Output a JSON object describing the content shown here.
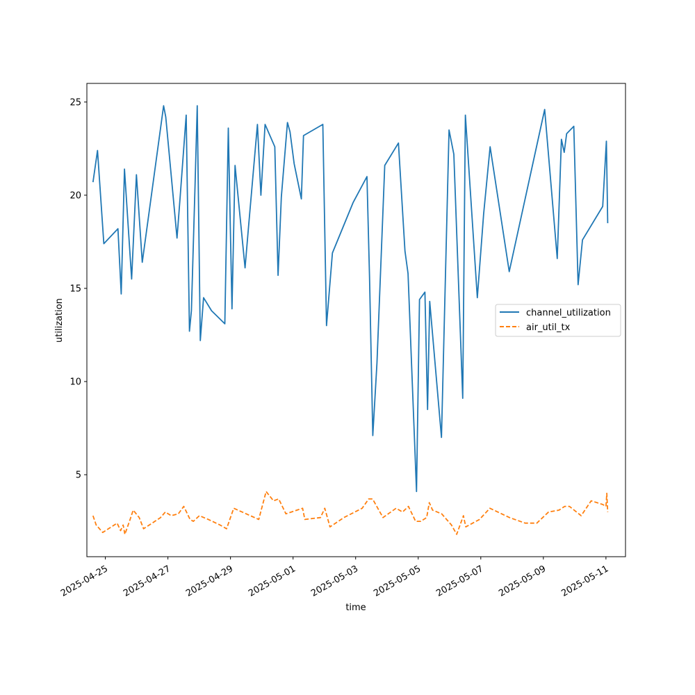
{
  "chart_data": {
    "type": "line",
    "title": "",
    "xlabel": "time",
    "ylabel": "utilization",
    "x_tick_labels": [
      "2025-04-25",
      "2025-04-27",
      "2025-04-29",
      "2025-05-01",
      "2025-05-03",
      "2025-05-05",
      "2025-05-07",
      "2025-05-09",
      "2025-05-11"
    ],
    "y_tick_labels": [
      "5",
      "10",
      "15",
      "20",
      "25"
    ],
    "xlim": [
      "2025-04-24T09:50",
      "2025-05-11T15:00"
    ],
    "ylim": [
      0.6,
      26.0
    ],
    "grid": false,
    "legend_position": "center-right",
    "series": [
      {
        "name": "channel_utilization",
        "color": "#1f77b4",
        "style": "solid",
        "points": [
          [
            "2025-04-24T14:30",
            20.7
          ],
          [
            "2025-04-24T18:00",
            22.4
          ],
          [
            "2025-04-24T22:50",
            17.4
          ],
          [
            "2025-04-25T09:40",
            18.2
          ],
          [
            "2025-04-25T12:10",
            14.7
          ],
          [
            "2025-04-25T14:40",
            21.4
          ],
          [
            "2025-04-25T20:10",
            15.5
          ],
          [
            "2025-04-25T23:50",
            21.1
          ],
          [
            "2025-04-26T04:20",
            16.4
          ],
          [
            "2025-04-26T20:40",
            24.8
          ],
          [
            "2025-04-26T22:20",
            24.2
          ],
          [
            "2025-04-27T02:20",
            21.2
          ],
          [
            "2025-04-27T07:00",
            17.7
          ],
          [
            "2025-04-27T09:30",
            20.0
          ],
          [
            "2025-04-27T14:00",
            24.3
          ],
          [
            "2025-04-27T16:30",
            12.7
          ],
          [
            "2025-04-27T18:00",
            13.8
          ],
          [
            "2025-04-27T20:50",
            20.6
          ],
          [
            "2025-04-27T22:30",
            24.8
          ],
          [
            "2025-04-28T00:50",
            12.2
          ],
          [
            "2025-04-28T03:20",
            14.5
          ],
          [
            "2025-04-28T09:30",
            13.8
          ],
          [
            "2025-04-28T19:40",
            13.1
          ],
          [
            "2025-04-28T22:20",
            23.6
          ],
          [
            "2025-04-29T01:10",
            13.9
          ],
          [
            "2025-04-29T03:30",
            21.6
          ],
          [
            "2025-04-29T11:10",
            16.1
          ],
          [
            "2025-04-29T13:50",
            18.3
          ],
          [
            "2025-04-29T20:40",
            23.8
          ],
          [
            "2025-04-29T23:20",
            20.0
          ],
          [
            "2025-04-30T02:30",
            23.8
          ],
          [
            "2025-04-30T10:00",
            22.6
          ],
          [
            "2025-04-30T12:30",
            15.7
          ],
          [
            "2025-04-30T15:00",
            19.9
          ],
          [
            "2025-04-30T19:40",
            23.9
          ],
          [
            "2025-04-30T21:40",
            23.4
          ],
          [
            "2025-05-01T00:50",
            21.7
          ],
          [
            "2025-05-01T06:20",
            19.8
          ],
          [
            "2025-05-01T08:00",
            23.2
          ],
          [
            "2025-05-01T22:50",
            23.8
          ],
          [
            "2025-05-02T01:40",
            13.0
          ],
          [
            "2025-05-02T06:10",
            16.9
          ],
          [
            "2025-05-02T22:00",
            19.6
          ],
          [
            "2025-05-03T08:40",
            21.0
          ],
          [
            "2025-05-03T10:40",
            15.6
          ],
          [
            "2025-05-03T13:10",
            7.1
          ],
          [
            "2025-05-03T16:20",
            11.0
          ],
          [
            "2025-05-03T22:20",
            21.6
          ],
          [
            "2025-05-04T08:50",
            22.8
          ],
          [
            "2025-05-04T13:50",
            17.0
          ],
          [
            "2025-05-04T16:10",
            15.8
          ],
          [
            "2025-05-04T22:40",
            4.1
          ],
          [
            "2025-05-05T01:00",
            14.4
          ],
          [
            "2025-05-05T05:10",
            14.8
          ],
          [
            "2025-05-05T07:10",
            8.5
          ],
          [
            "2025-05-05T08:50",
            14.3
          ],
          [
            "2025-05-05T17:50",
            7.0
          ],
          [
            "2025-05-05T23:40",
            23.5
          ],
          [
            "2025-05-06T03:20",
            22.2
          ],
          [
            "2025-05-06T10:10",
            9.1
          ],
          [
            "2025-05-06T12:10",
            24.3
          ],
          [
            "2025-05-06T21:20",
            14.5
          ],
          [
            "2025-05-07T02:10",
            19.0
          ],
          [
            "2025-05-07T07:10",
            22.6
          ],
          [
            "2025-05-07T21:50",
            15.9
          ],
          [
            "2025-05-09T01:00",
            24.6
          ],
          [
            "2025-05-09T10:40",
            16.6
          ],
          [
            "2025-05-09T13:50",
            23.0
          ],
          [
            "2025-05-09T16:00",
            22.3
          ],
          [
            "2025-05-09T17:50",
            23.3
          ],
          [
            "2025-05-09T23:20",
            23.7
          ],
          [
            "2025-05-10T02:40",
            15.2
          ],
          [
            "2025-05-10T06:00",
            17.6
          ],
          [
            "2025-05-10T21:30",
            19.4
          ],
          [
            "2025-05-11T00:20",
            22.9
          ],
          [
            "2025-05-11T01:20",
            18.5
          ]
        ]
      },
      {
        "name": "air_util_tx",
        "color": "#ff7f0e",
        "style": "dashed",
        "points": [
          [
            "2025-04-24T14:30",
            2.8
          ],
          [
            "2025-04-24T17:00",
            2.3
          ],
          [
            "2025-04-24T22:00",
            1.9
          ],
          [
            "2025-04-25T09:00",
            2.4
          ],
          [
            "2025-04-25T11:40",
            2.0
          ],
          [
            "2025-04-25T13:40",
            2.3
          ],
          [
            "2025-04-25T15:00",
            1.8
          ],
          [
            "2025-04-25T19:00",
            2.6
          ],
          [
            "2025-04-25T21:20",
            3.1
          ],
          [
            "2025-04-26T02:00",
            2.7
          ],
          [
            "2025-04-26T05:20",
            2.1
          ],
          [
            "2025-04-26T18:20",
            2.7
          ],
          [
            "2025-04-26T22:00",
            3.0
          ],
          [
            "2025-04-27T02:30",
            2.8
          ],
          [
            "2025-04-27T08:00",
            2.9
          ],
          [
            "2025-04-27T12:10",
            3.3
          ],
          [
            "2025-04-27T17:00",
            2.6
          ],
          [
            "2025-04-27T19:30",
            2.5
          ],
          [
            "2025-04-28T00:10",
            2.8
          ],
          [
            "2025-04-28T07:00",
            2.6
          ],
          [
            "2025-04-28T16:00",
            2.3
          ],
          [
            "2025-04-28T21:00",
            2.1
          ],
          [
            "2025-04-29T00:00",
            2.7
          ],
          [
            "2025-04-29T02:30",
            3.2
          ],
          [
            "2025-04-29T21:40",
            2.6
          ],
          [
            "2025-04-30T03:20",
            4.1
          ],
          [
            "2025-04-30T09:00",
            3.6
          ],
          [
            "2025-04-30T13:00",
            3.7
          ],
          [
            "2025-04-30T18:30",
            2.9
          ],
          [
            "2025-05-01T07:20",
            3.2
          ],
          [
            "2025-05-01T09:00",
            2.6
          ],
          [
            "2025-05-01T21:00",
            2.7
          ],
          [
            "2025-05-02T00:20",
            3.2
          ],
          [
            "2025-05-02T04:20",
            2.2
          ],
          [
            "2025-05-02T15:00",
            2.7
          ],
          [
            "2025-05-03T05:00",
            3.2
          ],
          [
            "2025-05-03T10:00",
            3.7
          ],
          [
            "2025-05-03T13:00",
            3.7
          ],
          [
            "2025-05-03T21:00",
            2.7
          ],
          [
            "2025-05-04T07:00",
            3.2
          ],
          [
            "2025-05-04T12:00",
            3.0
          ],
          [
            "2025-05-04T16:30",
            3.3
          ],
          [
            "2025-05-04T22:00",
            2.5
          ],
          [
            "2025-05-05T02:00",
            2.5
          ],
          [
            "2025-05-05T06:30",
            2.7
          ],
          [
            "2025-05-05T08:30",
            3.5
          ],
          [
            "2025-05-05T11:00",
            3.1
          ],
          [
            "2025-05-05T18:00",
            2.9
          ],
          [
            "2025-05-06T01:30",
            2.3
          ],
          [
            "2025-05-06T05:30",
            1.8
          ],
          [
            "2025-05-06T10:40",
            2.8
          ],
          [
            "2025-05-06T12:30",
            2.2
          ],
          [
            "2025-05-06T23:00",
            2.6
          ],
          [
            "2025-05-07T07:00",
            3.2
          ],
          [
            "2025-05-07T22:00",
            2.7
          ],
          [
            "2025-05-08T10:00",
            2.4
          ],
          [
            "2025-05-08T19:00",
            2.4
          ],
          [
            "2025-05-09T04:00",
            3.0
          ],
          [
            "2025-05-09T12:00",
            3.1
          ],
          [
            "2025-05-09T16:20",
            3.3
          ],
          [
            "2025-05-09T20:00",
            3.3
          ],
          [
            "2025-05-10T05:00",
            2.8
          ],
          [
            "2025-05-10T12:40",
            3.6
          ],
          [
            "2025-05-10T21:30",
            3.4
          ],
          [
            "2025-05-11T00:00",
            3.3
          ],
          [
            "2025-05-11T00:40",
            4.0
          ],
          [
            "2025-05-11T01:20",
            3.0
          ]
        ]
      }
    ]
  }
}
